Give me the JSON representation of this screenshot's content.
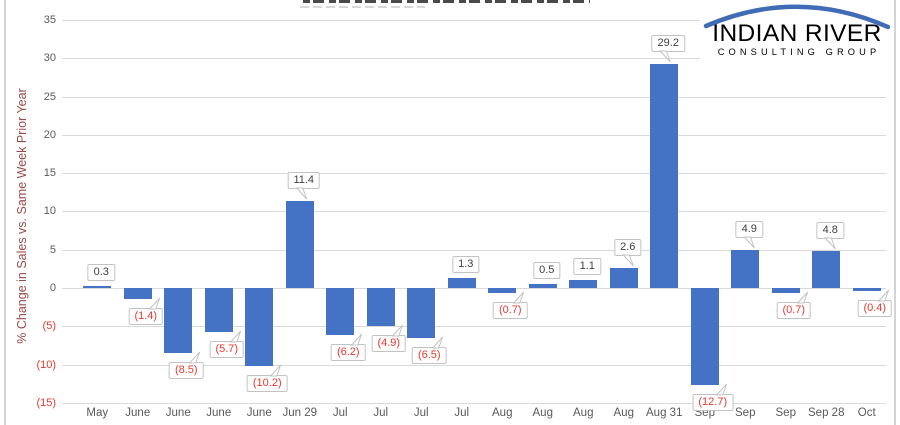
{
  "frame": {
    "edge_color": "#d4d4d4"
  },
  "logo": {
    "line1": "INDIAN RIVER",
    "line2": "CONSULTING GROUP",
    "arc_color": "#3f6cb5",
    "line1_color": "#3d4b59",
    "line2_color": "#9aa0a6"
  },
  "chart_data": {
    "type": "bar",
    "ylabel": "% Change in Sales vs. Same Week Prior Year",
    "categories": [
      "May",
      "June",
      "June",
      "June",
      "June",
      "Jun 29",
      "Jul",
      "Jul",
      "Jul",
      "Jul",
      "Aug",
      "Aug",
      "Aug",
      "Aug",
      "Aug 31",
      "Sep",
      "Sep",
      "Sep",
      "Sep 28",
      "Oct"
    ],
    "values": [
      0.3,
      -1.4,
      -8.5,
      -5.7,
      -10.2,
      11.4,
      -6.2,
      -4.9,
      -6.5,
      1.3,
      -0.7,
      0.5,
      1.1,
      2.6,
      29.2,
      -12.7,
      4.9,
      -0.7,
      4.8,
      -0.4
    ],
    "data_labels": [
      "0.3",
      "(1.4)",
      "(8.5)",
      "(5.7)",
      "(10.2)",
      "11.4",
      "(6.2)",
      "(4.9)",
      "(6.5)",
      "1.3",
      "(0.7)",
      "0.5",
      "1.1",
      "2.6",
      "29.2",
      "(12.7)",
      "4.9",
      "(0.7)",
      "4.8",
      "(0.4)"
    ],
    "y_ticks": {
      "values": [
        35,
        30,
        25,
        20,
        15,
        10,
        5,
        0,
        -5,
        -10,
        -15
      ],
      "labels": [
        "35",
        "30",
        "25",
        "20",
        "15",
        "10",
        "5",
        "0",
        "(5)",
        "(10)",
        "(15)"
      ]
    },
    "ylim": [
      -15,
      35
    ],
    "grid": true,
    "legend": "none",
    "colors": {
      "bar": "#4472c4",
      "gridline": "#d9d9d9",
      "tick_label": "#595959",
      "negative_label": "#e8392e",
      "positive_label": "#404040",
      "ylabel_color": "#9c4b46",
      "callout_border": "#c3c3c3"
    }
  }
}
